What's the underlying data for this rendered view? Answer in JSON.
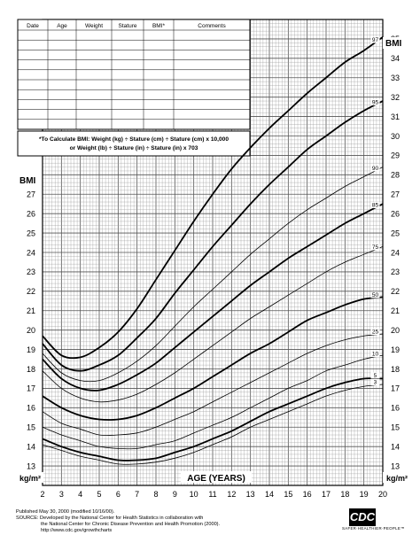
{
  "table": {
    "headers": [
      "Date",
      "Age",
      "Weight",
      "Stature",
      "BMI*",
      "Comments"
    ]
  },
  "formula": {
    "line1": "*To Calculate BMI: Weight (kg) ÷ Stature (cm) ÷ Stature (cm) x 10,000",
    "line2": "or Weight (lb) ÷ Stature (in) ÷ Stature (in) x 703"
  },
  "footer": {
    "line1": "Published May 30, 2000 (modified 10/16/00).",
    "line2": "SOURCE: Developed by the National Center for Health Statistics in collaboration with",
    "line3": "the National Center for Chronic Disease Prevention and Health Promotion (2000).",
    "line4": "http://www.cdc.gov/growthcharts"
  },
  "logo": {
    "text": "CDC",
    "tagline": "SAFER·HEALTHIER·PEOPLE™"
  },
  "chart_data": {
    "type": "line",
    "xlabel": "AGE (YEARS)",
    "ylabel": "BMI",
    "yunit": "kg/m²",
    "xlim": [
      2,
      20
    ],
    "ylim": [
      12,
      35
    ],
    "xticks": [
      2,
      3,
      4,
      5,
      6,
      7,
      8,
      9,
      10,
      11,
      12,
      13,
      14,
      15,
      16,
      17,
      18,
      19,
      20
    ],
    "yticks_left": [
      13,
      14,
      15,
      16,
      17,
      18,
      19,
      20,
      21,
      22,
      23,
      24,
      25,
      26,
      27
    ],
    "yticks_right": [
      13,
      14,
      15,
      16,
      17,
      18,
      19,
      20,
      21,
      22,
      23,
      24,
      25,
      26,
      27,
      28,
      29,
      30,
      31,
      32,
      33,
      34,
      35
    ],
    "grid": true,
    "series": [
      {
        "name": "97",
        "bold": true,
        "x": [
          2,
          3,
          4,
          5,
          6,
          7,
          8,
          9,
          10,
          11,
          12,
          13,
          14,
          15,
          16,
          17,
          18,
          19,
          20
        ],
        "values": [
          19.7,
          18.7,
          18.6,
          19.1,
          19.9,
          21.1,
          22.6,
          24.1,
          25.6,
          27.0,
          28.3,
          29.4,
          30.4,
          31.3,
          32.2,
          33.0,
          33.8,
          34.4,
          35.1
        ]
      },
      {
        "name": "95",
        "bold": true,
        "x": [
          2,
          3,
          4,
          5,
          6,
          7,
          8,
          9,
          10,
          11,
          12,
          13,
          14,
          15,
          16,
          17,
          18,
          19,
          20
        ],
        "values": [
          19.3,
          18.2,
          17.9,
          18.2,
          18.7,
          19.6,
          20.6,
          21.9,
          23.1,
          24.3,
          25.4,
          26.5,
          27.5,
          28.4,
          29.3,
          30.0,
          30.7,
          31.3,
          31.8
        ]
      },
      {
        "name": "90",
        "bold": false,
        "x": [
          2,
          3,
          4,
          5,
          6,
          7,
          8,
          9,
          10,
          11,
          12,
          13,
          14,
          15,
          16,
          17,
          18,
          19,
          20
        ],
        "values": [
          18.8,
          17.8,
          17.4,
          17.4,
          17.8,
          18.4,
          19.2,
          20.2,
          21.2,
          22.1,
          23.0,
          23.9,
          24.7,
          25.5,
          26.2,
          26.8,
          27.4,
          27.9,
          28.4
        ]
      },
      {
        "name": "85",
        "bold": true,
        "x": [
          2,
          3,
          4,
          5,
          6,
          7,
          8,
          9,
          10,
          11,
          12,
          13,
          14,
          15,
          16,
          17,
          18,
          19,
          20
        ],
        "values": [
          18.5,
          17.5,
          17.0,
          16.9,
          17.2,
          17.7,
          18.3,
          19.1,
          19.9,
          20.7,
          21.5,
          22.3,
          23.0,
          23.7,
          24.3,
          24.9,
          25.5,
          26.0,
          26.5
        ]
      },
      {
        "name": "75",
        "bold": false,
        "x": [
          2,
          3,
          4,
          5,
          6,
          7,
          8,
          9,
          10,
          11,
          12,
          13,
          14,
          15,
          16,
          17,
          18,
          19,
          20
        ],
        "values": [
          17.9,
          17.0,
          16.5,
          16.3,
          16.4,
          16.7,
          17.2,
          17.8,
          18.5,
          19.2,
          19.9,
          20.6,
          21.2,
          21.8,
          22.4,
          23.0,
          23.5,
          23.9,
          24.3
        ]
      },
      {
        "name": "50",
        "bold": true,
        "x": [
          2,
          3,
          4,
          5,
          6,
          7,
          8,
          9,
          10,
          11,
          12,
          13,
          14,
          15,
          16,
          17,
          18,
          19,
          20
        ],
        "values": [
          16.6,
          16.0,
          15.6,
          15.4,
          15.4,
          15.6,
          16.0,
          16.5,
          17.0,
          17.6,
          18.2,
          18.8,
          19.3,
          19.9,
          20.5,
          20.9,
          21.3,
          21.6,
          21.7
        ]
      },
      {
        "name": "25",
        "bold": false,
        "x": [
          2,
          3,
          4,
          5,
          6,
          7,
          8,
          9,
          10,
          11,
          12,
          13,
          14,
          15,
          16,
          17,
          18,
          19,
          20
        ],
        "values": [
          15.8,
          15.2,
          14.9,
          14.6,
          14.6,
          14.7,
          15.0,
          15.4,
          15.8,
          16.3,
          16.8,
          17.3,
          17.8,
          18.3,
          18.8,
          19.2,
          19.5,
          19.7,
          19.8
        ]
      },
      {
        "name": "10",
        "bold": false,
        "x": [
          2,
          3,
          4,
          5,
          6,
          7,
          8,
          9,
          10,
          11,
          12,
          13,
          14,
          15,
          16,
          17,
          18,
          19,
          20
        ],
        "values": [
          15.0,
          14.6,
          14.3,
          14.0,
          13.9,
          13.9,
          14.1,
          14.3,
          14.7,
          15.1,
          15.5,
          16.0,
          16.5,
          17.0,
          17.4,
          17.9,
          18.2,
          18.5,
          18.7
        ]
      },
      {
        "name": "5",
        "bold": true,
        "x": [
          2,
          3,
          4,
          5,
          6,
          7,
          8,
          9,
          10,
          11,
          12,
          13,
          14,
          15,
          16,
          17,
          18,
          19,
          20
        ],
        "values": [
          14.4,
          14.0,
          13.7,
          13.5,
          13.3,
          13.3,
          13.4,
          13.7,
          14.0,
          14.4,
          14.8,
          15.3,
          15.8,
          16.2,
          16.6,
          17.0,
          17.3,
          17.5,
          17.5
        ]
      },
      {
        "name": "3",
        "bold": false,
        "x": [
          2,
          3,
          4,
          5,
          6,
          7,
          8,
          9,
          10,
          11,
          12,
          13,
          14,
          15,
          16,
          17,
          18,
          19,
          20
        ],
        "values": [
          14.1,
          13.8,
          13.5,
          13.3,
          13.1,
          13.1,
          13.2,
          13.4,
          13.7,
          14.1,
          14.5,
          15.0,
          15.4,
          15.8,
          16.2,
          16.6,
          16.9,
          17.1,
          17.2
        ]
      }
    ]
  }
}
